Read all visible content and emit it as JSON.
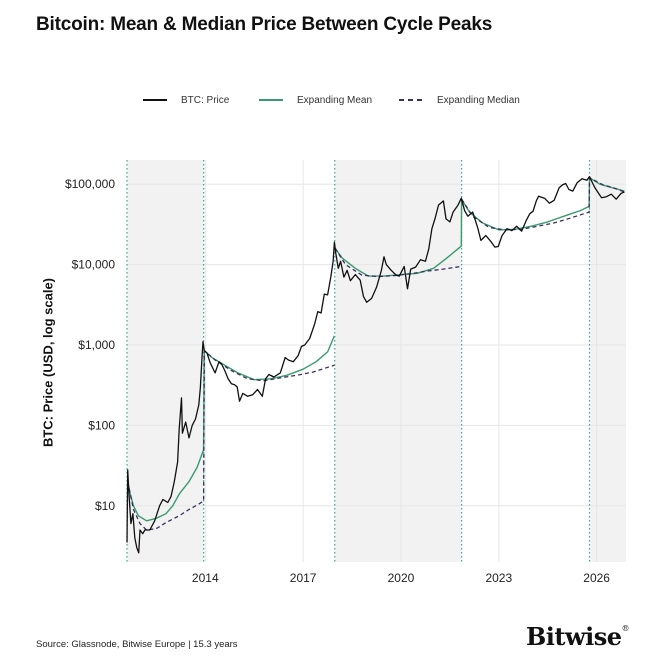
{
  "page": {
    "title": "Bitcoin: Mean & Median Price Between Cycle Peaks",
    "source": "Source: Glassnode, Bitwise Europe | 15.3 years",
    "logo": "Bitwise",
    "logo_mark": "®"
  },
  "colors": {
    "price": "#111111",
    "mean": "#3a9a6e",
    "median": "#3b2e5a",
    "peak_line": "#3aa59c",
    "shade": "#f2f2f2",
    "grid": "#e6e6e6"
  },
  "chart_data": {
    "type": "line",
    "title": "Bitcoin: Mean & Median Price Between Cycle Peaks",
    "ylabel": "BTC: Price (USD, log scale)",
    "xlabel": "",
    "y_scale": "log",
    "ylim": [
      2,
      200000
    ],
    "xlim": [
      2011.6,
      2026.9
    ],
    "y_ticks": [
      {
        "value": 10,
        "label": "$10"
      },
      {
        "value": 100,
        "label": "$100"
      },
      {
        "value": 1000,
        "label": "$1,000"
      },
      {
        "value": 10000,
        "label": "$10,000"
      },
      {
        "value": 100000,
        "label": "$100,000"
      }
    ],
    "x_ticks": [
      {
        "value": 2014,
        "label": "2014"
      },
      {
        "value": 2017,
        "label": "2017"
      },
      {
        "value": 2020,
        "label": "2020"
      },
      {
        "value": 2023,
        "label": "2023"
      },
      {
        "value": 2026,
        "label": "2026"
      }
    ],
    "grid": true,
    "legend_position": "top",
    "cycle_peaks": [
      2011.6,
      2013.95,
      2017.97,
      2021.86,
      2025.78
    ],
    "shaded_periods": [
      [
        2011.6,
        2013.95
      ],
      [
        2017.97,
        2021.86
      ],
      [
        2025.78,
        2026.9
      ]
    ],
    "series": [
      {
        "name": "BTC: Price",
        "style": "solid",
        "points": [
          [
            2011.6,
            3.5
          ],
          [
            2011.62,
            28
          ],
          [
            2011.66,
            14
          ],
          [
            2011.72,
            6
          ],
          [
            2011.78,
            8
          ],
          [
            2011.84,
            4
          ],
          [
            2011.9,
            3
          ],
          [
            2011.96,
            2.6
          ],
          [
            2012.0,
            5
          ],
          [
            2012.08,
            4.5
          ],
          [
            2012.15,
            5
          ],
          [
            2012.3,
            5
          ],
          [
            2012.45,
            6.5
          ],
          [
            2012.6,
            10
          ],
          [
            2012.7,
            12
          ],
          [
            2012.85,
            11
          ],
          [
            2012.95,
            13
          ],
          [
            2013.05,
            20
          ],
          [
            2013.15,
            35
          ],
          [
            2013.2,
            90
          ],
          [
            2013.27,
            220
          ],
          [
            2013.3,
            80
          ],
          [
            2013.4,
            110
          ],
          [
            2013.5,
            70
          ],
          [
            2013.6,
            100
          ],
          [
            2013.7,
            120
          ],
          [
            2013.8,
            180
          ],
          [
            2013.85,
            300
          ],
          [
            2013.9,
            700
          ],
          [
            2013.93,
            1100
          ],
          [
            2013.97,
            850
          ],
          [
            2014.05,
            800
          ],
          [
            2014.15,
            600
          ],
          [
            2014.3,
            450
          ],
          [
            2014.42,
            620
          ],
          [
            2014.5,
            580
          ],
          [
            2014.6,
            480
          ],
          [
            2014.7,
            380
          ],
          [
            2014.8,
            330
          ],
          [
            2014.9,
            320
          ],
          [
            2014.98,
            300
          ],
          [
            2015.05,
            200
          ],
          [
            2015.15,
            250
          ],
          [
            2015.3,
            230
          ],
          [
            2015.45,
            240
          ],
          [
            2015.6,
            280
          ],
          [
            2015.75,
            230
          ],
          [
            2015.85,
            380
          ],
          [
            2015.95,
            430
          ],
          [
            2016.1,
            400
          ],
          [
            2016.3,
            450
          ],
          [
            2016.45,
            700
          ],
          [
            2016.55,
            650
          ],
          [
            2016.7,
            620
          ],
          [
            2016.85,
            740
          ],
          [
            2016.95,
            960
          ],
          [
            2017.05,
            1000
          ],
          [
            2017.2,
            1200
          ],
          [
            2017.35,
            1800
          ],
          [
            2017.45,
            2600
          ],
          [
            2017.55,
            2500
          ],
          [
            2017.65,
            4300
          ],
          [
            2017.75,
            4200
          ],
          [
            2017.85,
            7000
          ],
          [
            2017.92,
            11000
          ],
          [
            2017.96,
            19000
          ],
          [
            2018.0,
            14000
          ],
          [
            2018.08,
            9000
          ],
          [
            2018.15,
            11000
          ],
          [
            2018.25,
            7000
          ],
          [
            2018.35,
            8500
          ],
          [
            2018.45,
            6300
          ],
          [
            2018.6,
            7500
          ],
          [
            2018.75,
            6400
          ],
          [
            2018.85,
            4000
          ],
          [
            2018.95,
            3400
          ],
          [
            2019.1,
            3800
          ],
          [
            2019.25,
            5200
          ],
          [
            2019.4,
            8500
          ],
          [
            2019.48,
            12500
          ],
          [
            2019.55,
            10000
          ],
          [
            2019.7,
            8500
          ],
          [
            2019.85,
            7400
          ],
          [
            2019.95,
            7200
          ],
          [
            2020.1,
            9500
          ],
          [
            2020.2,
            5000
          ],
          [
            2020.3,
            8800
          ],
          [
            2020.45,
            9300
          ],
          [
            2020.6,
            11500
          ],
          [
            2020.75,
            11000
          ],
          [
            2020.85,
            15500
          ],
          [
            2020.95,
            28000
          ],
          [
            2021.05,
            38000
          ],
          [
            2021.15,
            55000
          ],
          [
            2021.3,
            62000
          ],
          [
            2021.38,
            37000
          ],
          [
            2021.5,
            34000
          ],
          [
            2021.6,
            45000
          ],
          [
            2021.75,
            55000
          ],
          [
            2021.85,
            67000
          ],
          [
            2021.95,
            47000
          ],
          [
            2022.05,
            40000
          ],
          [
            2022.2,
            45000
          ],
          [
            2022.35,
            29000
          ],
          [
            2022.45,
            20000
          ],
          [
            2022.6,
            23000
          ],
          [
            2022.75,
            19500
          ],
          [
            2022.88,
            16500
          ],
          [
            2022.98,
            16800
          ],
          [
            2023.1,
            23000
          ],
          [
            2023.25,
            28000
          ],
          [
            2023.4,
            26500
          ],
          [
            2023.55,
            30000
          ],
          [
            2023.7,
            26000
          ],
          [
            2023.85,
            36000
          ],
          [
            2023.95,
            43000
          ],
          [
            2024.05,
            46000
          ],
          [
            2024.15,
            62000
          ],
          [
            2024.22,
            71000
          ],
          [
            2024.4,
            67000
          ],
          [
            2024.55,
            58000
          ],
          [
            2024.7,
            63000
          ],
          [
            2024.85,
            90000
          ],
          [
            2024.95,
            98000
          ],
          [
            2025.05,
            102000
          ],
          [
            2025.15,
            86000
          ],
          [
            2025.27,
            82000
          ],
          [
            2025.4,
            104000
          ],
          [
            2025.55,
            117000
          ],
          [
            2025.7,
            112000
          ],
          [
            2025.78,
            124000
          ],
          [
            2025.85,
            108000
          ],
          [
            2025.95,
            90000
          ],
          [
            2026.05,
            78000
          ],
          [
            2026.15,
            68000
          ],
          [
            2026.3,
            70000
          ],
          [
            2026.45,
            75000
          ],
          [
            2026.6,
            65000
          ],
          [
            2026.75,
            77000
          ],
          [
            2026.85,
            80000
          ]
        ]
      },
      {
        "name": "Expanding Mean",
        "style": "solid",
        "points": [
          [
            2011.62,
            20
          ],
          [
            2011.7,
            14
          ],
          [
            2011.8,
            10
          ],
          [
            2011.95,
            7.5
          ],
          [
            2012.2,
            6.5
          ],
          [
            2012.5,
            7
          ],
          [
            2012.8,
            8
          ],
          [
            2013.0,
            10
          ],
          [
            2013.2,
            14
          ],
          [
            2013.5,
            20
          ],
          [
            2013.75,
            30
          ],
          [
            2013.95,
            50
          ],
          [
            2013.97,
            850
          ],
          [
            2014.2,
            700
          ],
          [
            2014.6,
            560
          ],
          [
            2015.0,
            450
          ],
          [
            2015.5,
            370
          ],
          [
            2016.0,
            380
          ],
          [
            2016.5,
            420
          ],
          [
            2017.0,
            500
          ],
          [
            2017.4,
            620
          ],
          [
            2017.75,
            820
          ],
          [
            2017.96,
            1300
          ],
          [
            2017.98,
            16000
          ],
          [
            2018.2,
            12000
          ],
          [
            2018.6,
            9000
          ],
          [
            2019.0,
            7200
          ],
          [
            2019.5,
            7200
          ],
          [
            2020.0,
            7500
          ],
          [
            2020.5,
            7800
          ],
          [
            2021.0,
            9000
          ],
          [
            2021.4,
            12000
          ],
          [
            2021.85,
            17000
          ],
          [
            2021.86,
            65000
          ],
          [
            2022.1,
            45000
          ],
          [
            2022.5,
            33000
          ],
          [
            2023.0,
            27000
          ],
          [
            2023.5,
            27500
          ],
          [
            2024.0,
            30000
          ],
          [
            2024.5,
            34000
          ],
          [
            2025.0,
            40000
          ],
          [
            2025.5,
            47000
          ],
          [
            2025.77,
            53000
          ],
          [
            2025.78,
            120000
          ],
          [
            2026.1,
            100000
          ],
          [
            2026.5,
            90000
          ],
          [
            2026.85,
            82000
          ]
        ]
      },
      {
        "name": "Expanding Median",
        "style": "dashed",
        "points": [
          [
            2011.62,
            20
          ],
          [
            2011.8,
            9
          ],
          [
            2012.0,
            6
          ],
          [
            2012.2,
            5
          ],
          [
            2012.5,
            5.2
          ],
          [
            2012.8,
            6.2
          ],
          [
            2013.2,
            7.5
          ],
          [
            2013.5,
            9
          ],
          [
            2013.8,
            10.5
          ],
          [
            2013.95,
            11.5
          ],
          [
            2013.97,
            850
          ],
          [
            2014.3,
            650
          ],
          [
            2014.8,
            480
          ],
          [
            2015.3,
            380
          ],
          [
            2015.8,
            360
          ],
          [
            2016.3,
            390
          ],
          [
            2016.8,
            420
          ],
          [
            2017.3,
            460
          ],
          [
            2017.96,
            560
          ],
          [
            2017.98,
            16000
          ],
          [
            2018.3,
            10000
          ],
          [
            2018.8,
            7400
          ],
          [
            2019.3,
            7100
          ],
          [
            2019.8,
            7300
          ],
          [
            2020.3,
            7700
          ],
          [
            2020.8,
            8300
          ],
          [
            2021.3,
            8800
          ],
          [
            2021.85,
            9500
          ],
          [
            2021.86,
            65000
          ],
          [
            2022.2,
            40000
          ],
          [
            2022.7,
            29000
          ],
          [
            2023.2,
            27000
          ],
          [
            2023.7,
            27500
          ],
          [
            2024.2,
            30000
          ],
          [
            2024.7,
            33000
          ],
          [
            2025.2,
            38000
          ],
          [
            2025.77,
            45000
          ],
          [
            2025.78,
            120000
          ],
          [
            2026.2,
            98000
          ],
          [
            2026.6,
            88000
          ],
          [
            2026.85,
            80000
          ]
        ]
      }
    ]
  }
}
